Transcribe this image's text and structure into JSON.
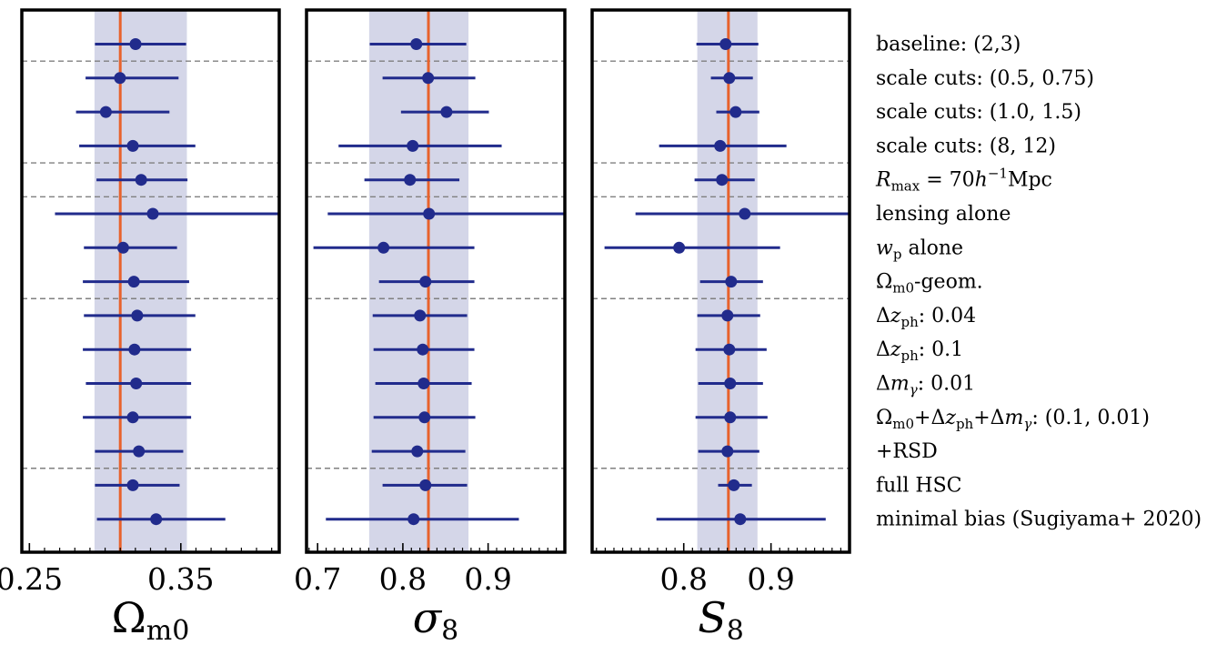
{
  "chart_data": [
    {
      "type": "errorbar",
      "parameter": "Ωm0",
      "xlabel_main": "Ω",
      "xlabel_sub": "m0",
      "xlim": [
        0.245,
        0.415
      ],
      "ticks": [
        0.25,
        0.35
      ],
      "tick_labels": [
        "0.25",
        "0.35"
      ],
      "reference_value": 0.31,
      "band": [
        0.293,
        0.354
      ],
      "points": [
        {
          "value": 0.3201,
          "lo": 0.2933,
          "hi": 0.3535
        },
        {
          "value": 0.3098,
          "lo": 0.2871,
          "hi": 0.3485
        },
        {
          "value": 0.3005,
          "lo": 0.2808,
          "hi": 0.3425
        },
        {
          "value": 0.3183,
          "lo": 0.2829,
          "hi": 0.3596
        },
        {
          "value": 0.3238,
          "lo": 0.2943,
          "hi": 0.3544
        },
        {
          "value": 0.3315,
          "lo": 0.2669,
          "hi": 0.415
        },
        {
          "value": 0.3119,
          "lo": 0.286,
          "hi": 0.3475
        },
        {
          "value": 0.319,
          "lo": 0.2853,
          "hi": 0.3555
        },
        {
          "value": 0.3212,
          "lo": 0.286,
          "hi": 0.3596
        },
        {
          "value": 0.3194,
          "lo": 0.2853,
          "hi": 0.3568
        },
        {
          "value": 0.3205,
          "lo": 0.2873,
          "hi": 0.3568
        },
        {
          "value": 0.3183,
          "lo": 0.2853,
          "hi": 0.3568
        },
        {
          "value": 0.3223,
          "lo": 0.2933,
          "hi": 0.3516
        },
        {
          "value": 0.3183,
          "lo": 0.2933,
          "hi": 0.3492
        },
        {
          "value": 0.3337,
          "lo": 0.2946,
          "hi": 0.3794
        }
      ]
    },
    {
      "type": "errorbar",
      "parameter": "σ8",
      "xlabel_main": "σ",
      "xlabel_sub": "8",
      "xlim": [
        0.687,
        0.99
      ],
      "ticks": [
        0.7,
        0.8,
        0.9
      ],
      "tick_labels": [
        "0.7",
        "0.8",
        "0.9"
      ],
      "reference_value": 0.83,
      "band": [
        0.7605,
        0.877
      ],
      "points": [
        {
          "value": 0.8158,
          "lo": 0.7612,
          "hi": 0.8744
        },
        {
          "value": 0.8296,
          "lo": 0.7762,
          "hi": 0.885
        },
        {
          "value": 0.8512,
          "lo": 0.7978,
          "hi": 0.9009
        },
        {
          "value": 0.8115,
          "lo": 0.7246,
          "hi": 0.9159
        },
        {
          "value": 0.8083,
          "lo": 0.7549,
          "hi": 0.8663
        },
        {
          "value": 0.8307,
          "lo": 0.7119,
          "hi": 0.99
        },
        {
          "value": 0.7773,
          "lo": 0.6951,
          "hi": 0.8839
        },
        {
          "value": 0.8265,
          "lo": 0.772,
          "hi": 0.8839
        },
        {
          "value": 0.8201,
          "lo": 0.7646,
          "hi": 0.8754
        },
        {
          "value": 0.8233,
          "lo": 0.7656,
          "hi": 0.8839
        },
        {
          "value": 0.8244,
          "lo": 0.7677,
          "hi": 0.8807
        },
        {
          "value": 0.8254,
          "lo": 0.7656,
          "hi": 0.885
        },
        {
          "value": 0.8169,
          "lo": 0.7635,
          "hi": 0.8733
        },
        {
          "value": 0.8265,
          "lo": 0.7762,
          "hi": 0.8754
        },
        {
          "value": 0.8126,
          "lo": 0.7097,
          "hi": 0.9361
        }
      ]
    },
    {
      "type": "errorbar",
      "parameter": "S8",
      "xlabel_main": "S",
      "xlabel_sub": "8",
      "xlim": [
        0.695,
        0.99
      ],
      "ticks": [
        0.8,
        0.9
      ],
      "tick_labels": [
        "0.8",
        "0.9"
      ],
      "reference_value": 0.8512,
      "band": [
        0.8155,
        0.8845
      ],
      "points": [
        {
          "value": 0.848,
          "lo": 0.8145,
          "hi": 0.8855
        },
        {
          "value": 0.8522,
          "lo": 0.8311,
          "hi": 0.8792
        },
        {
          "value": 0.8595,
          "lo": 0.8373,
          "hi": 0.8866
        },
        {
          "value": 0.8417,
          "lo": 0.7718,
          "hi": 0.9177
        },
        {
          "value": 0.8438,
          "lo": 0.8124,
          "hi": 0.8813
        },
        {
          "value": 0.8699,
          "lo": 0.7447,
          "hi": 0.99
        },
        {
          "value": 0.7947,
          "lo": 0.7092,
          "hi": 0.9104
        },
        {
          "value": 0.8543,
          "lo": 0.8187,
          "hi": 0.8908
        },
        {
          "value": 0.8501,
          "lo": 0.8155,
          "hi": 0.8876
        },
        {
          "value": 0.8522,
          "lo": 0.8135,
          "hi": 0.895
        },
        {
          "value": 0.8532,
          "lo": 0.8166,
          "hi": 0.8908
        },
        {
          "value": 0.8532,
          "lo": 0.8135,
          "hi": 0.896
        },
        {
          "value": 0.8501,
          "lo": 0.8166,
          "hi": 0.8866
        },
        {
          "value": 0.8574,
          "lo": 0.8394,
          "hi": 0.8781
        },
        {
          "value": 0.8647,
          "lo": 0.7687,
          "hi": 0.9627
        }
      ]
    }
  ],
  "rows": [
    [
      {
        "t": "baseline: (2,3)"
      }
    ],
    [
      {
        "t": "scale cuts: (0.5, 0.75)"
      }
    ],
    [
      {
        "t": "scale cuts: (1.0, 1.5)"
      }
    ],
    [
      {
        "t": "scale cuts: (8, 12)"
      }
    ],
    [
      {
        "t": "R",
        "i": true
      },
      {
        "t": "max",
        "s": true
      },
      {
        "t": " = 70"
      },
      {
        "t": "h",
        "i": true
      },
      {
        "t": "−1",
        "sup": true
      },
      {
        "t": "Mpc"
      }
    ],
    [
      {
        "t": "lensing alone"
      }
    ],
    [
      {
        "t": "w",
        "i": true
      },
      {
        "t": "p",
        "s": true
      },
      {
        "t": " alone"
      }
    ],
    [
      {
        "t": "Ω"
      },
      {
        "t": "m0",
        "s": true
      },
      {
        "t": "-geom."
      }
    ],
    [
      {
        "t": "Δ"
      },
      {
        "t": "z",
        "i": true
      },
      {
        "t": "ph",
        "s": true
      },
      {
        "t": ": 0.04"
      }
    ],
    [
      {
        "t": "Δ"
      },
      {
        "t": "z",
        "i": true
      },
      {
        "t": "ph",
        "s": true
      },
      {
        "t": ": 0.1"
      }
    ],
    [
      {
        "t": "Δ"
      },
      {
        "t": "m",
        "i": true
      },
      {
        "t": "γ",
        "s": true,
        "i": true
      },
      {
        "t": ": 0.01"
      }
    ],
    [
      {
        "t": "Ω"
      },
      {
        "t": "m0",
        "s": true
      },
      {
        "t": "+Δ"
      },
      {
        "t": "z",
        "i": true
      },
      {
        "t": "ph",
        "s": true
      },
      {
        "t": "+Δ"
      },
      {
        "t": "m",
        "i": true
      },
      {
        "t": "γ",
        "s": true,
        "i": true
      },
      {
        "t": ": (0.1, 0.01)"
      }
    ],
    [
      {
        "t": "+RSD"
      }
    ],
    [
      {
        "t": "full HSC"
      }
    ],
    [
      {
        "t": "minimal bias (Sugiyama+ 2020)"
      }
    ]
  ],
  "separators_after_rows": [
    0,
    3,
    4,
    7,
    12
  ],
  "colors": {
    "band": "#d4d6e8",
    "reference_line": "#e8622c",
    "marker": "#212b8c",
    "separator": "#808080",
    "frame": "#000000"
  }
}
